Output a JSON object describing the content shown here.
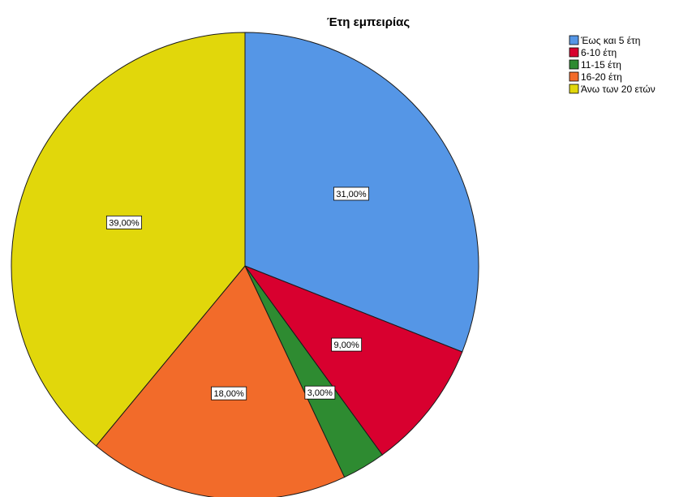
{
  "chart_data": {
    "type": "pie",
    "title": "Έτη εμπειρίας",
    "legend_position": "top-right",
    "slices": [
      {
        "label": "Έως και 5  έτη",
        "value": 31.0,
        "display": "31,00%",
        "color": "#5596e6"
      },
      {
        "label": "6-10 έτη",
        "value": 9.0,
        "display": "9,00%",
        "color": "#d8002f"
      },
      {
        "label": "11-15 έτη",
        "value": 3.0,
        "display": "3,00%",
        "color": "#2e8b31"
      },
      {
        "label": "16-20 έτη",
        "value": 18.0,
        "display": "18,00%",
        "color": "#f26b2a"
      },
      {
        "label": "Άνω των 20 ετών",
        "value": 39.0,
        "display": "39,00%",
        "color": "#e1d70b"
      }
    ]
  }
}
